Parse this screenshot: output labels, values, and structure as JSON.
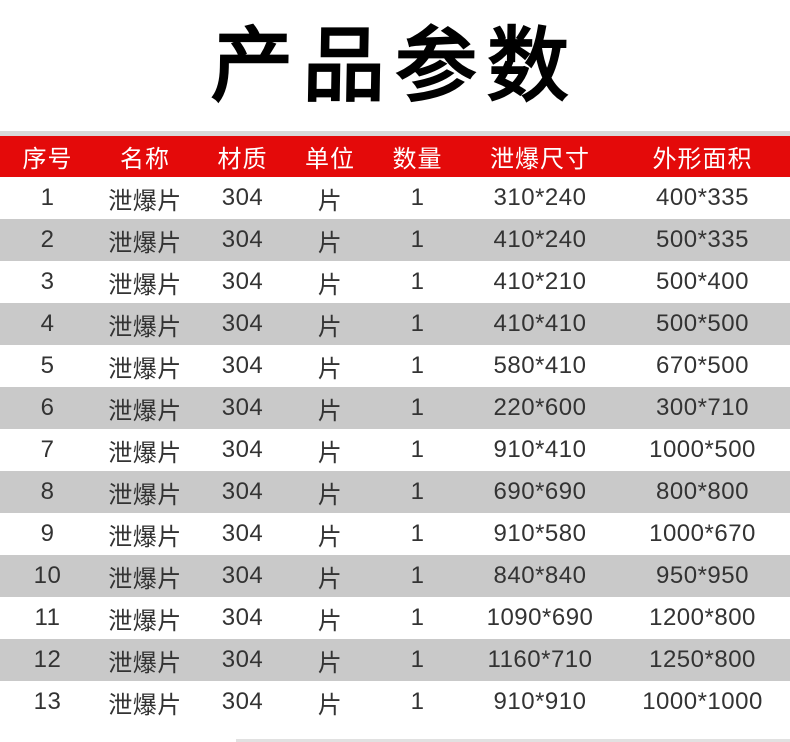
{
  "title": "产品参数",
  "table": {
    "headers": [
      "序号",
      "名称",
      "材质",
      "单位",
      "数量",
      "泄爆尺寸",
      "外形面积"
    ],
    "rows": [
      [
        "1",
        "泄爆片",
        "304",
        "片",
        "1",
        "310*240",
        "400*335"
      ],
      [
        "2",
        "泄爆片",
        "304",
        "片",
        "1",
        "410*240",
        "500*335"
      ],
      [
        "3",
        "泄爆片",
        "304",
        "片",
        "1",
        "410*210",
        "500*400"
      ],
      [
        "4",
        "泄爆片",
        "304",
        "片",
        "1",
        "410*410",
        "500*500"
      ],
      [
        "5",
        "泄爆片",
        "304",
        "片",
        "1",
        "580*410",
        "670*500"
      ],
      [
        "6",
        "泄爆片",
        "304",
        "片",
        "1",
        "220*600",
        "300*710"
      ],
      [
        "7",
        "泄爆片",
        "304",
        "片",
        "1",
        "910*410",
        "1000*500"
      ],
      [
        "8",
        "泄爆片",
        "304",
        "片",
        "1",
        "690*690",
        "800*800"
      ],
      [
        "9",
        "泄爆片",
        "304",
        "片",
        "1",
        "910*580",
        "1000*670"
      ],
      [
        "10",
        "泄爆片",
        "304",
        "片",
        "1",
        "840*840",
        "950*950"
      ],
      [
        "11",
        "泄爆片",
        "304",
        "片",
        "1",
        "1090*690",
        "1200*800"
      ],
      [
        "12",
        "泄爆片",
        "304",
        "片",
        "1",
        "1160*710",
        "1250*800"
      ],
      [
        "13",
        "泄爆片",
        "304",
        "片",
        "1",
        "910*910",
        "1000*1000"
      ]
    ]
  },
  "colors": {
    "header_bg": "#e40a0a",
    "header_text": "#ffffff",
    "row_bg": "#ffffff",
    "row_alt_bg": "#c9c9c9",
    "body_text": "#333333",
    "divider": "#d9d9d9",
    "title_text": "#000000"
  }
}
